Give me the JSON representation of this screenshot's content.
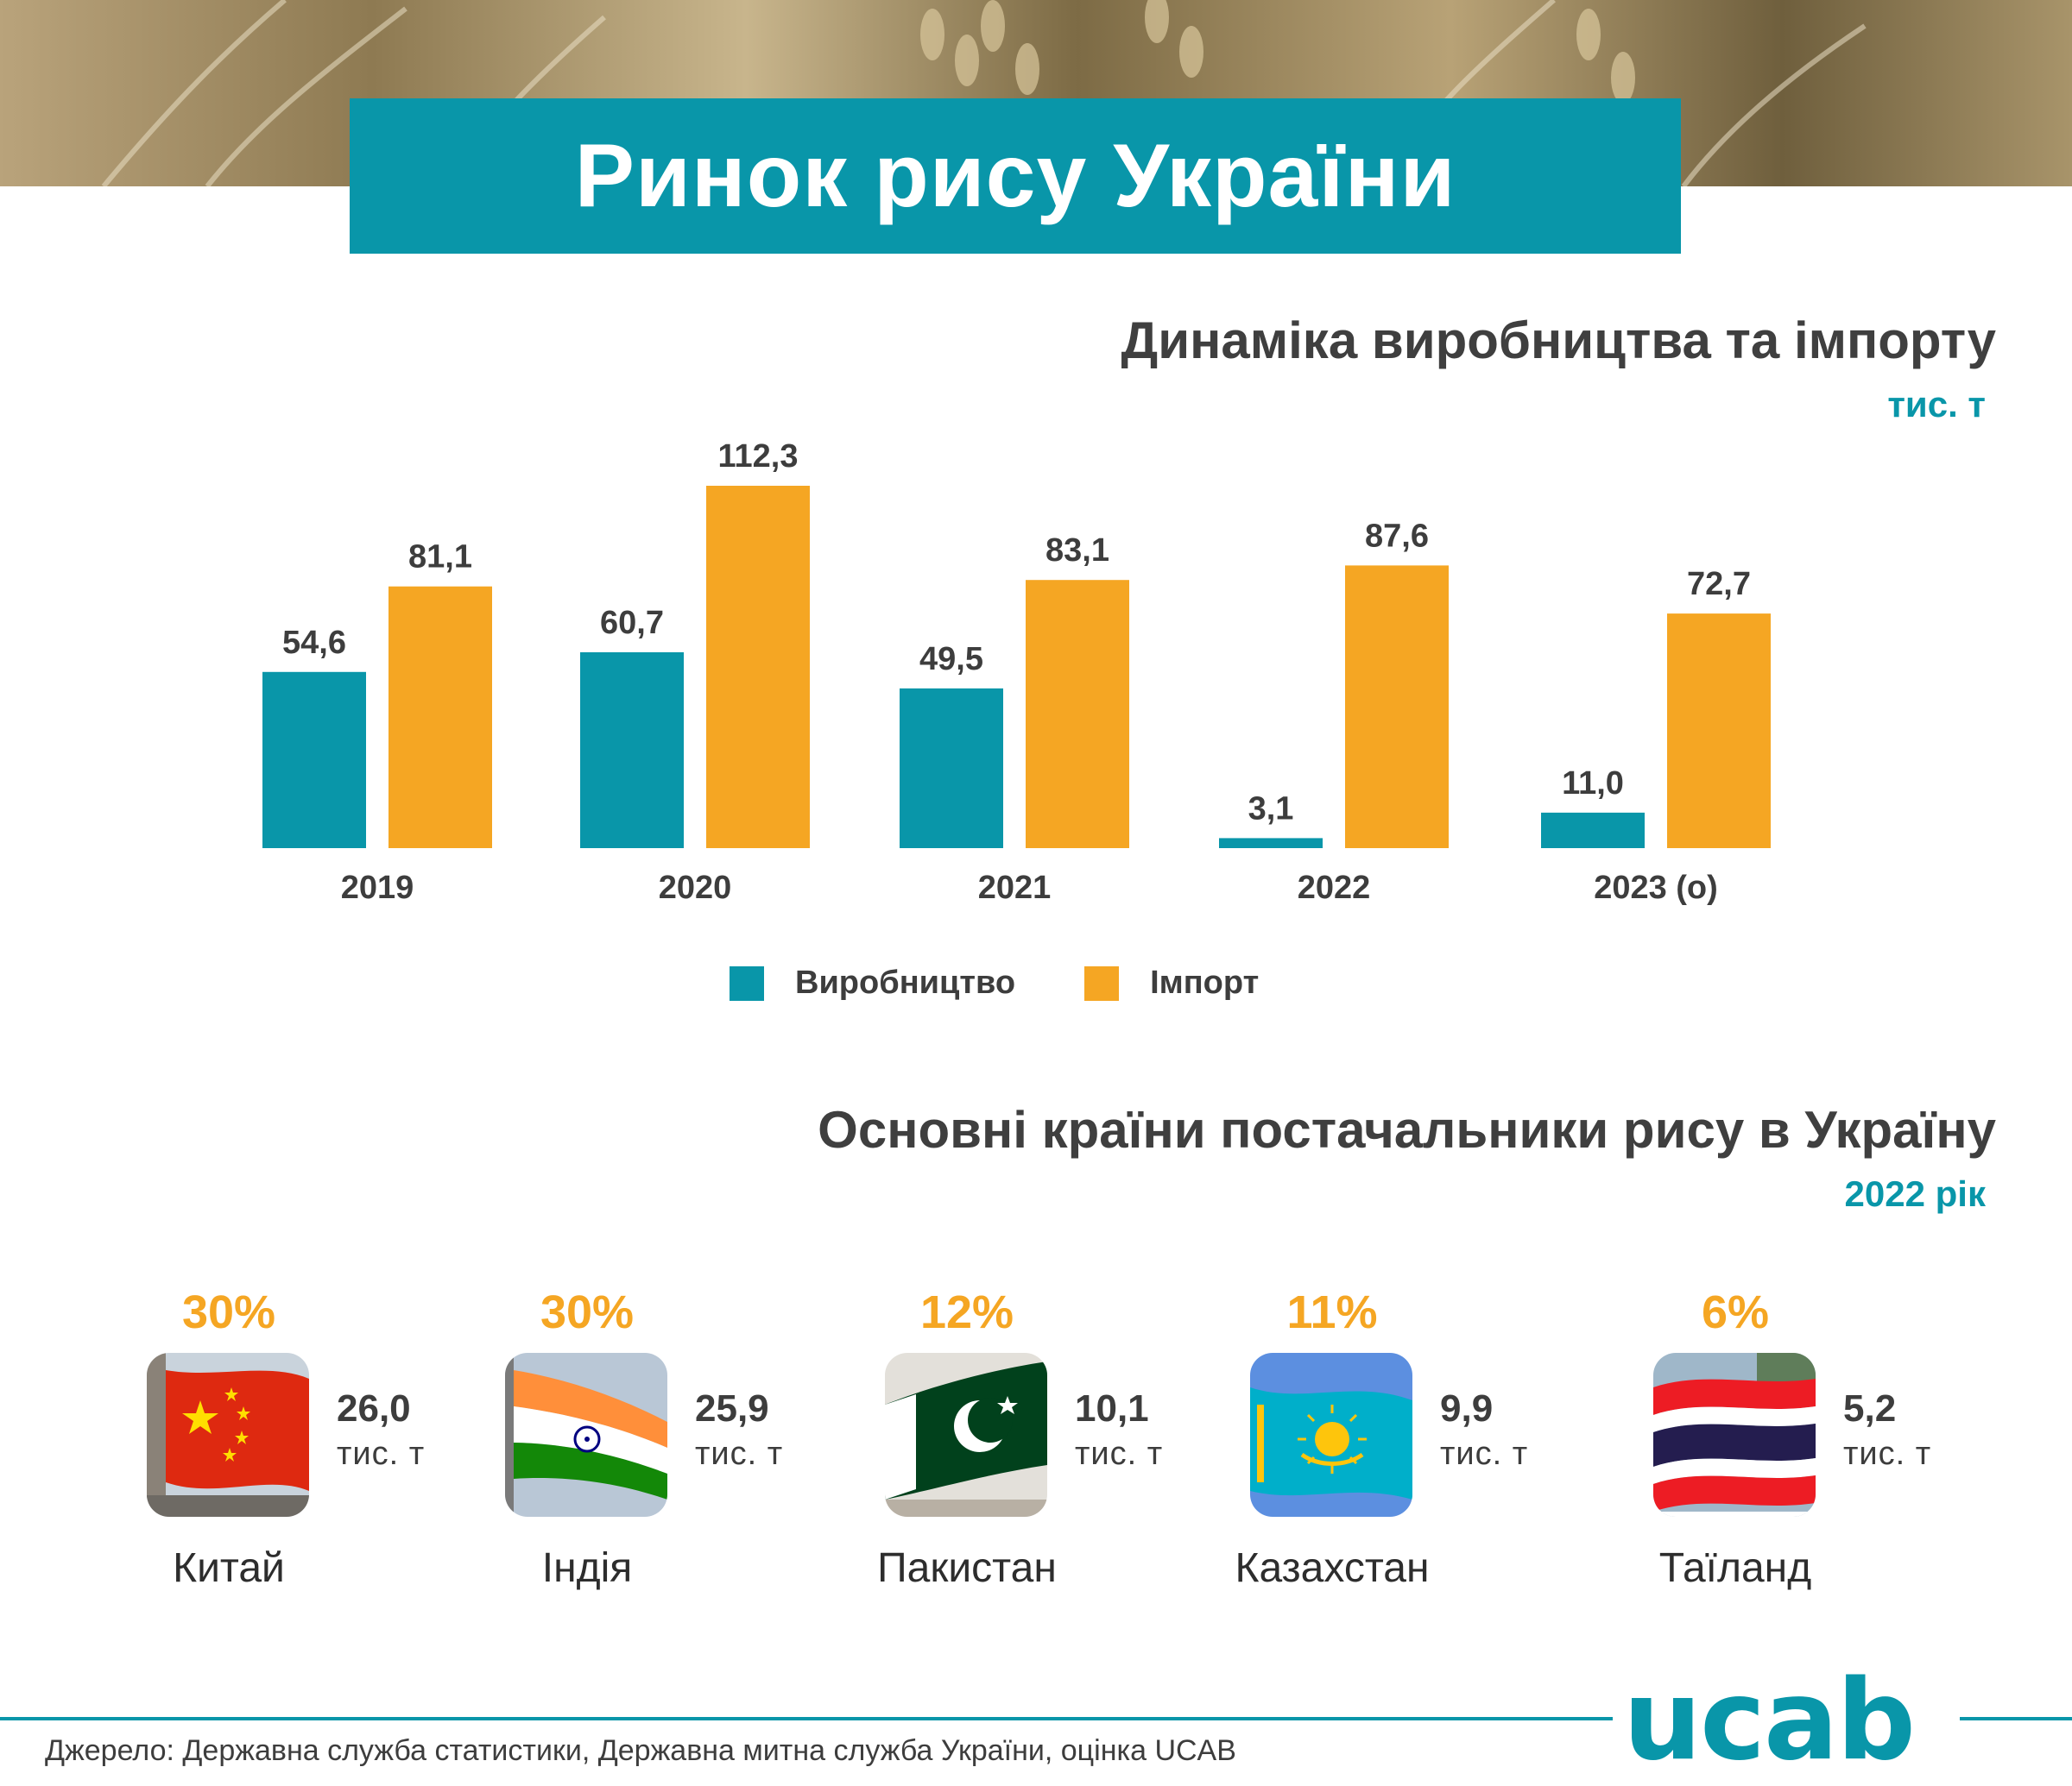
{
  "header": {
    "title": "Ринок рису України"
  },
  "colors": {
    "production": "#0996a9",
    "import": "#f5a623",
    "text": "#3d3d3d",
    "accent": "#0996a9"
  },
  "chart_data": {
    "type": "bar",
    "title": "Динаміка виробництва та імпорту",
    "unit": "тис. т",
    "categories": [
      "2019",
      "2020",
      "2021",
      "2022",
      "2023 (о)"
    ],
    "series": [
      {
        "name": "Виробництво",
        "values": [
          54.6,
          60.7,
          49.5,
          3.1,
          11.0
        ],
        "labels": [
          "54,6",
          "60,7",
          "49,5",
          "3,1",
          "11,0"
        ]
      },
      {
        "name": "Імпорт",
        "values": [
          81.1,
          112.3,
          83.1,
          87.6,
          72.7
        ],
        "labels": [
          "81,1",
          "112,3",
          "83,1",
          "87,6",
          "72,7"
        ]
      }
    ],
    "ylim": [
      0,
      112.3
    ],
    "grid": false,
    "legend": "bottom"
  },
  "suppliers": {
    "title": "Основні країни постачальники рису в Україну",
    "year": "2022 рік",
    "unit_label": "тис. т",
    "countries": [
      {
        "name": "Китай",
        "pct": "30%",
        "value": "26,0",
        "flag_icon": "china-flag-icon"
      },
      {
        "name": "Індія",
        "pct": "30%",
        "value": "25,9",
        "flag_icon": "india-flag-icon"
      },
      {
        "name": "Пакистан",
        "pct": "12%",
        "value": "10,1",
        "flag_icon": "pakistan-flag-icon"
      },
      {
        "name": "Казахстан",
        "pct": "11%",
        "value": "9,9",
        "flag_icon": "kazakhstan-flag-icon"
      },
      {
        "name": "Таїланд",
        "pct": "6%",
        "value": "5,2",
        "flag_icon": "thailand-flag-icon"
      }
    ]
  },
  "footer": {
    "source": "Джерело: Державна служба статистики, Державна митна служба України, оцінка UCAB",
    "logo": "ucab"
  }
}
